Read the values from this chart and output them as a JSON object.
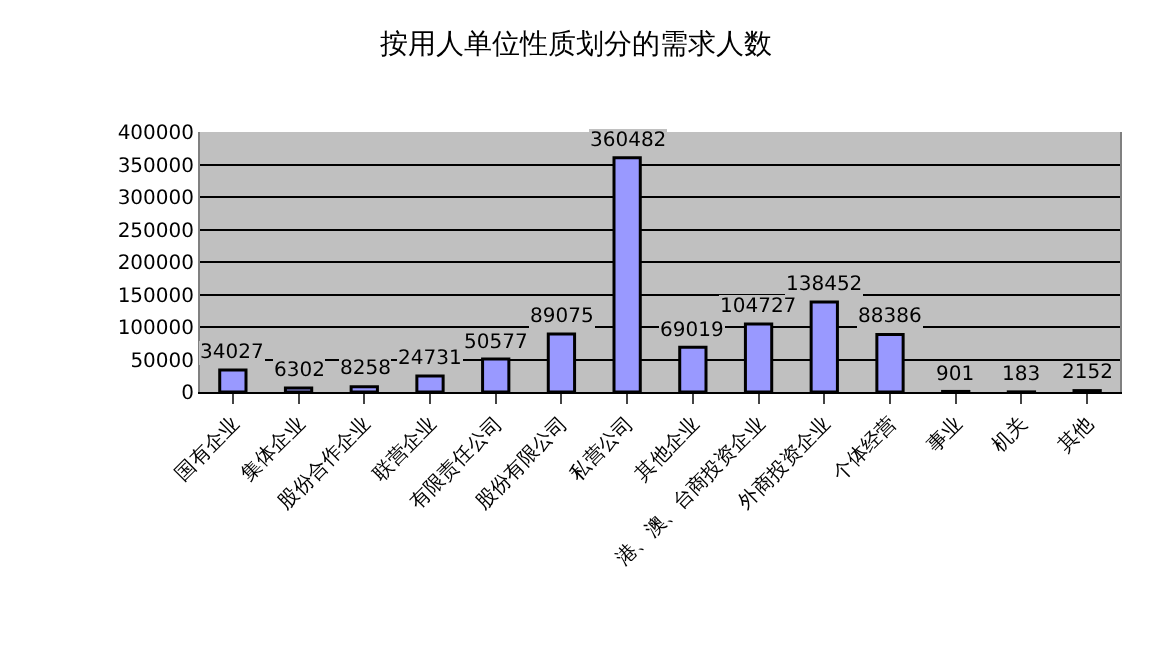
{
  "chart_data": {
    "type": "bar",
    "title": "按用人单位性质划分的需求人数",
    "categories": [
      "国有企业",
      "集体企业",
      "股份合作企业",
      "联营企业",
      "有限责任公司",
      "股份有限公司",
      "私营公司",
      "其他企业",
      "港、澳、台商投资企业",
      "外商投资企业",
      "个体经营",
      "事业",
      "机关",
      "其他"
    ],
    "values": [
      34027,
      6302,
      8258,
      24731,
      50577,
      89075,
      360482,
      69019,
      104727,
      138452,
      88386,
      901,
      183,
      2152
    ],
    "color": "#9999ff",
    "ylim": [
      0,
      400000
    ],
    "yticks": [
      0,
      50000,
      100000,
      150000,
      200000,
      250000,
      300000,
      350000,
      400000
    ],
    "grid": "y",
    "legend": false,
    "data_labels": true
  }
}
